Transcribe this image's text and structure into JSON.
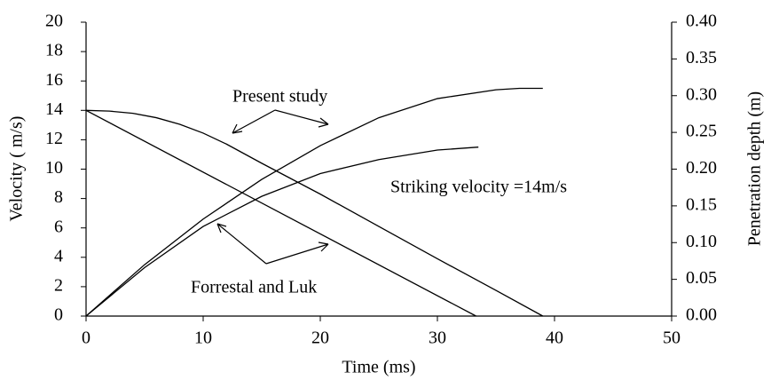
{
  "chart_data": {
    "type": "line",
    "x_label": "Time (ms)",
    "y_label": "Velocity ( m/s)",
    "y2_label": "Penetration depth (m)",
    "annotations": [
      "Present study",
      "Forrestal and Luk",
      "Striking velocity =14m/s"
    ],
    "xlim": [
      0,
      50
    ],
    "xticks": [
      0,
      10,
      20,
      30,
      40,
      50
    ],
    "ylim": [
      0,
      20
    ],
    "yticks": [
      0,
      2,
      4,
      6,
      8,
      10,
      12,
      14,
      16,
      18,
      20
    ],
    "y2lim": [
      0,
      0.4
    ],
    "y2ticks": [
      {
        "value": 0,
        "label": "0.00"
      },
      0.05,
      {
        "value": 0.1,
        "label": "0.10"
      },
      0.15,
      {
        "value": 0.2,
        "label": "0.20"
      },
      0.25,
      {
        "value": 0.3,
        "label": "0.30"
      },
      0.35,
      {
        "value": 0.4,
        "label": "0.40"
      }
    ],
    "series": [
      {
        "color": "#000000",
        "x": [
          0,
          2,
          4,
          6,
          8,
          10,
          12,
          15,
          20,
          25,
          30,
          35,
          39
        ],
        "values": [
          14,
          13.95,
          13.8,
          13.5,
          13.05,
          12.45,
          11.7,
          10.4,
          8.3,
          6.1,
          3.9,
          1.75,
          0
        ]
      },
      {
        "color": "#000000",
        "x": [
          0,
          33.3
        ],
        "values": [
          14,
          0
        ]
      },
      {
        "color": "#000000",
        "axis": "y2",
        "x": [
          0,
          5,
          10,
          15,
          20,
          25,
          30,
          35,
          37,
          39
        ],
        "values": [
          0,
          0.07,
          0.132,
          0.186,
          0.232,
          0.27,
          0.296,
          0.308,
          0.31,
          0.31
        ]
      },
      {
        "color": "#000000",
        "axis": "y2",
        "x": [
          0,
          5,
          10,
          15,
          20,
          25,
          30,
          33.5
        ],
        "values": [
          0,
          0.066,
          0.122,
          0.163,
          0.194,
          0.213,
          0.226,
          0.23
        ]
      }
    ]
  }
}
